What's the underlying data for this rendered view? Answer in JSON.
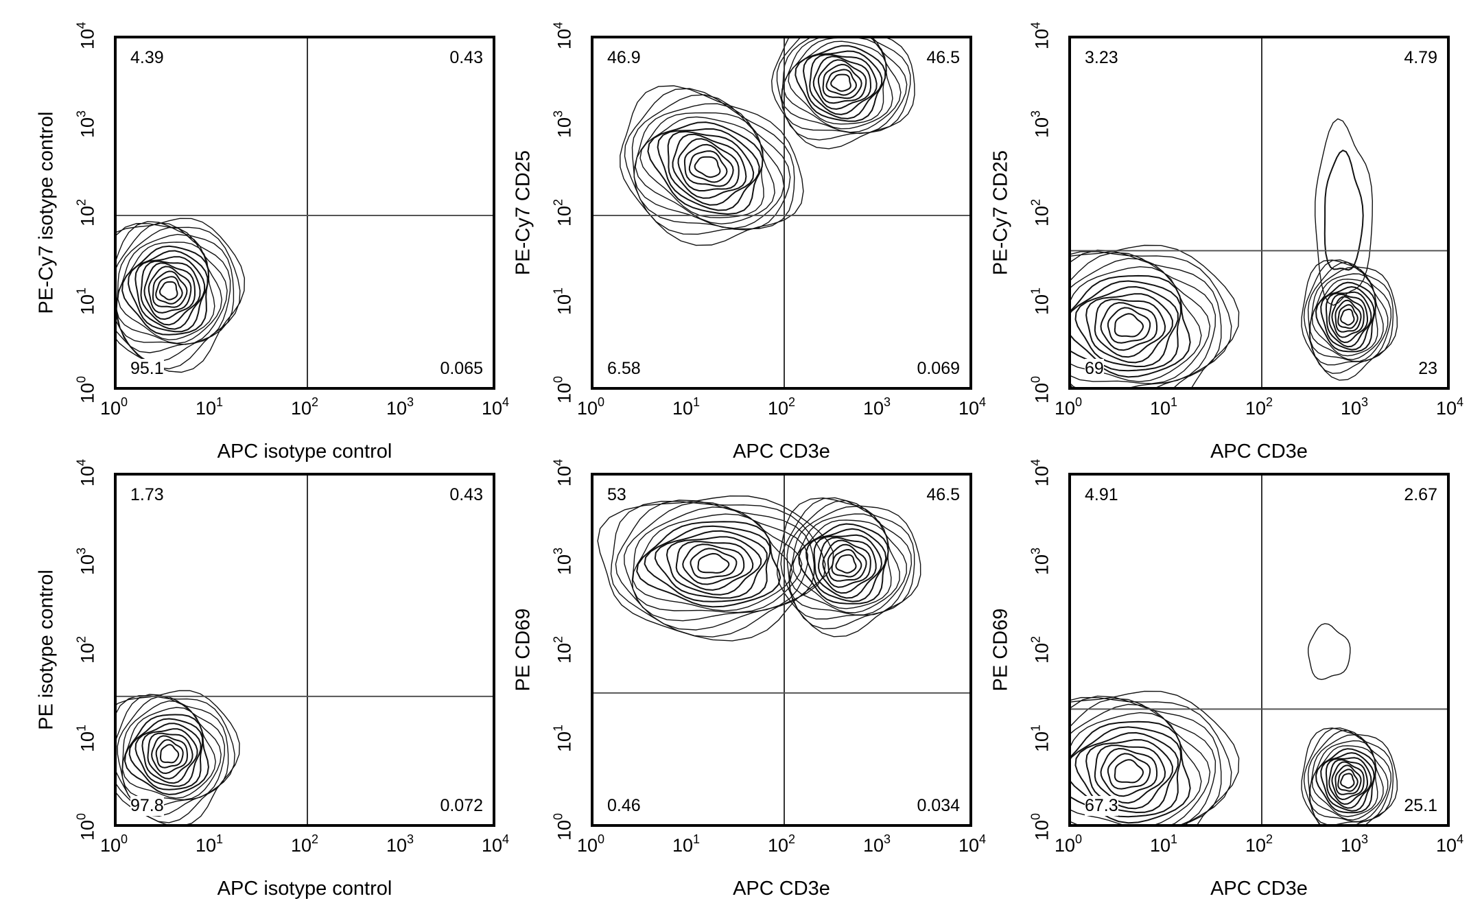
{
  "chart_data": [
    {
      "type": "heatmap",
      "subtype": "flow-cytometry-contour",
      "panel": "top-left",
      "xlabel": "APC isotype control",
      "ylabel": "PE-Cy7 isotype control",
      "xscale": "log",
      "yscale": "log",
      "xlim": [
        1,
        10000
      ],
      "ylim": [
        1,
        10000
      ],
      "x_ticks": [
        "10^0",
        "10^1",
        "10^2",
        "10^3",
        "10^4"
      ],
      "y_ticks": [
        "10^0",
        "10^1",
        "10^2",
        "10^3",
        "10^4"
      ],
      "gate": {
        "x": 100,
        "y": 100
      },
      "quadrants": {
        "upper_left": "4.39",
        "upper_right": "0.43",
        "lower_left": "95.1",
        "lower_right": "0.065"
      }
    },
    {
      "type": "heatmap",
      "subtype": "flow-cytometry-contour",
      "panel": "top-middle",
      "xlabel": "APC CD3e",
      "ylabel": "PE-Cy7 CD25",
      "xscale": "log",
      "yscale": "log",
      "xlim": [
        1,
        10000
      ],
      "ylim": [
        1,
        10000
      ],
      "x_ticks": [
        "10^0",
        "10^1",
        "10^2",
        "10^3",
        "10^4"
      ],
      "y_ticks": [
        "10^0",
        "10^1",
        "10^2",
        "10^3",
        "10^4"
      ],
      "gate": {
        "x": 100,
        "y": 100
      },
      "quadrants": {
        "upper_left": "46.9",
        "upper_right": "46.5",
        "lower_left": "6.58",
        "lower_right": "0.069"
      }
    },
    {
      "type": "heatmap",
      "subtype": "flow-cytometry-contour",
      "panel": "top-right",
      "xlabel": "APC CD3e",
      "ylabel": "PE-Cy7 CD25",
      "xscale": "log",
      "yscale": "log",
      "xlim": [
        1,
        10000
      ],
      "ylim": [
        1,
        10000
      ],
      "x_ticks": [
        "10^0",
        "10^1",
        "10^2",
        "10^3",
        "10^4"
      ],
      "y_ticks": [
        "10^0",
        "10^1",
        "10^2",
        "10^3",
        "10^4"
      ],
      "gate": {
        "x": 100,
        "y": 40
      },
      "quadrants": {
        "upper_left": "3.23",
        "upper_right": "4.79",
        "lower_left": "69",
        "lower_right": "23"
      }
    },
    {
      "type": "heatmap",
      "subtype": "flow-cytometry-contour",
      "panel": "bottom-left",
      "xlabel": "APC isotype control",
      "ylabel": "PE isotype control",
      "xscale": "log",
      "yscale": "log",
      "xlim": [
        1,
        10000
      ],
      "ylim": [
        1,
        10000
      ],
      "x_ticks": [
        "10^0",
        "10^1",
        "10^2",
        "10^3",
        "10^4"
      ],
      "y_ticks": [
        "10^0",
        "10^1",
        "10^2",
        "10^3",
        "10^4"
      ],
      "gate": {
        "x": 100,
        "y": 32
      },
      "quadrants": {
        "upper_left": "1.73",
        "upper_right": "0.43",
        "lower_left": "97.8",
        "lower_right": "0.072"
      }
    },
    {
      "type": "heatmap",
      "subtype": "flow-cytometry-contour",
      "panel": "bottom-middle",
      "xlabel": "APC CD3e",
      "ylabel": "PE CD69",
      "xscale": "log",
      "yscale": "log",
      "xlim": [
        1,
        10000
      ],
      "ylim": [
        1,
        10000
      ],
      "x_ticks": [
        "10^0",
        "10^1",
        "10^2",
        "10^3",
        "10^4"
      ],
      "y_ticks": [
        "10^0",
        "10^1",
        "10^2",
        "10^3",
        "10^4"
      ],
      "gate": {
        "x": 100,
        "y": 35
      },
      "quadrants": {
        "upper_left": "53",
        "upper_right": "46.5",
        "lower_left": "0.46",
        "lower_right": "0.034"
      }
    },
    {
      "type": "heatmap",
      "subtype": "flow-cytometry-contour",
      "panel": "bottom-right",
      "xlabel": "APC CD3e",
      "ylabel": "PE CD69",
      "xscale": "log",
      "yscale": "log",
      "xlim": [
        1,
        10000
      ],
      "ylim": [
        1,
        10000
      ],
      "x_ticks": [
        "10^0",
        "10^1",
        "10^2",
        "10^3",
        "10^4"
      ],
      "y_ticks": [
        "10^0",
        "10^1",
        "10^2",
        "10^3",
        "10^4"
      ],
      "gate": {
        "x": 100,
        "y": 23
      },
      "quadrants": {
        "upper_left": "4.91",
        "upper_right": "2.67",
        "lower_left": "67.3",
        "lower_right": "25.1"
      }
    }
  ],
  "panels": [
    {
      "xlabel": "APC isotype control",
      "ylabel": "PE-Cy7 isotype control",
      "ul": "4.39",
      "ur": "0.43",
      "ll": "95.1",
      "lr": "0.065"
    },
    {
      "xlabel": "APC CD3e",
      "ylabel": "PE-Cy7 CD25",
      "ul": "46.9",
      "ur": "46.5",
      "ll": "6.58",
      "lr": "0.069"
    },
    {
      "xlabel": "APC CD3e",
      "ylabel": "PE-Cy7 CD25",
      "ul": "3.23",
      "ur": "4.79",
      "ll": "69",
      "lr": "23"
    },
    {
      "xlabel": "APC isotype control",
      "ylabel": "PE isotype control",
      "ul": "1.73",
      "ur": "0.43",
      "ll": "97.8",
      "lr": "0.072"
    },
    {
      "xlabel": "APC CD3e",
      "ylabel": "PE CD69",
      "ul": "53",
      "ur": "46.5",
      "ll": "0.46",
      "lr": "0.034"
    },
    {
      "xlabel": "APC CD3e",
      "ylabel": "PE CD69",
      "ul": "4.91",
      "ur": "2.67",
      "ll": "67.3",
      "lr": "25.1"
    }
  ],
  "ticks": {
    "base": "10",
    "exps": [
      "0",
      "1",
      "2",
      "3",
      "4"
    ]
  }
}
